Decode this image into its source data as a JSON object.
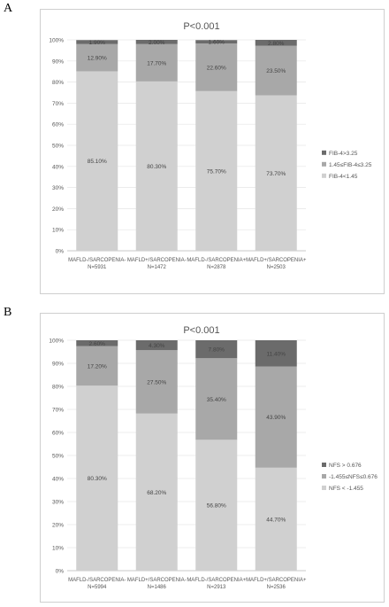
{
  "panels": [
    {
      "letter": "A",
      "chart_data": {
        "type": "bar",
        "stacked": true,
        "title": "P<0.001",
        "categories": [
          [
            "MAFLD-/SARCOPENIA-",
            "N=5931"
          ],
          [
            "MAFLD+/SARCOPENIA-",
            "N=1472"
          ],
          [
            "MAFLD-/SARCOPENIA+",
            "N=2878"
          ],
          [
            "MAFLD+/SARCOPENIA+",
            "N=2503"
          ]
        ],
        "ylim": [
          0,
          100
        ],
        "yticks": [
          "0%",
          "10%",
          "20%",
          "30%",
          "40%",
          "50%",
          "60%",
          "70%",
          "80%",
          "90%",
          "100%"
        ],
        "legend_position": "right",
        "series": [
          {
            "name": "FIB-4<1.45",
            "values": [
              85.1,
              80.3,
              75.7,
              73.7
            ],
            "labels": [
              "85.10%",
              "80.30%",
              "75.70%",
              "73.70%"
            ],
            "color": "#d0d0d0"
          },
          {
            "name": "1.45≤FIB-4≤3.25",
            "values": [
              12.9,
              17.7,
              22.6,
              23.5
            ],
            "labels": [
              "12.90%",
              "17.70%",
              "22.60%",
              "23.50%"
            ],
            "color": "#a8a8a8"
          },
          {
            "name": "FIB-4>3.25",
            "values": [
              1.9,
              2.0,
              1.6,
              2.8
            ],
            "labels": [
              "1.90%",
              "2.00%",
              "1.60%",
              "2.80%"
            ],
            "color": "#6b6b6b"
          }
        ]
      }
    },
    {
      "letter": "B",
      "chart_data": {
        "type": "bar",
        "stacked": true,
        "title": "P<0.001",
        "categories": [
          [
            "MAFLD-/SARCOPENIA-",
            "N=5994"
          ],
          [
            "MAFLD+/SARCOPENIA-",
            "N=1486"
          ],
          [
            "MAFLD-/SARCOPENIA+",
            "N=2913"
          ],
          [
            "MAFLD+/SARCOPENIA+",
            "N=2536"
          ]
        ],
        "ylim": [
          0,
          100
        ],
        "yticks": [
          "0%",
          "10%",
          "20%",
          "30%",
          "40%",
          "50%",
          "60%",
          "70%",
          "80%",
          "90%",
          "100%"
        ],
        "legend_position": "right",
        "series": [
          {
            "name": "NFS < -1.455",
            "values": [
              80.3,
              68.2,
              56.8,
              44.7
            ],
            "labels": [
              "80.30%",
              "68.20%",
              "56.80%",
              "44.70%"
            ],
            "color": "#d0d0d0"
          },
          {
            "name": "-1.455≤NFS≤0.676",
            "values": [
              17.2,
              27.5,
              35.4,
              43.9
            ],
            "labels": [
              "17.20%",
              "27.50%",
              "35.40%",
              "43.90%"
            ],
            "color": "#a8a8a8"
          },
          {
            "name": "NFS > 0.676",
            "values": [
              2.6,
              4.3,
              7.8,
              11.4
            ],
            "labels": [
              "2.60%",
              "4.30%",
              "7.80%",
              "11.40%"
            ],
            "color": "#6b6b6b"
          }
        ]
      }
    }
  ]
}
